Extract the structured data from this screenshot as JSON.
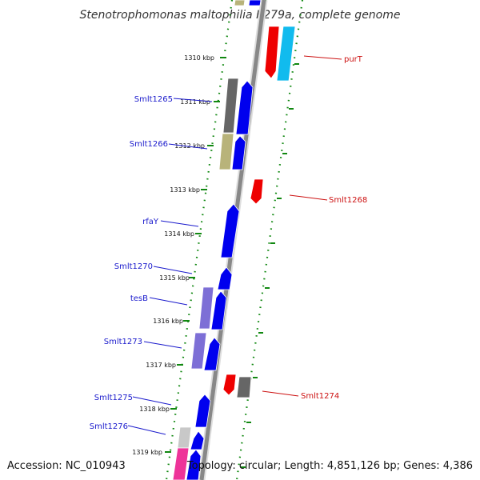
{
  "title": "Stenotrophomonas maltophilia K279a, complete genome",
  "footer": {
    "accession": "Accession: NC_010943",
    "topology": "Topology: circular; Length: 4,851,126 bp; Genes: 4,386"
  },
  "colors": {
    "backbone": "#888888",
    "tick": "#118811",
    "dots": "#118811",
    "forward_gene": "#0000ee",
    "reverse_gene": "#ee0000",
    "gray_gene": "#666666",
    "khaki_gene": "#b8b37a",
    "lavender_gene": "#7d6fd6",
    "cyan_gene": "#11bbee",
    "pink_gene": "#ee3399",
    "light_gray_gene": "#c8c8c8",
    "left_label": "#1a1acc",
    "right_label": "#cc1111"
  },
  "ticks": [
    {
      "label": "1310 kbp"
    },
    {
      "label": "1311 kbp"
    },
    {
      "label": "1312 kbp"
    },
    {
      "label": "1313 kbp"
    },
    {
      "label": "1314 kbp"
    },
    {
      "label": "1315 kbp"
    },
    {
      "label": "1316 kbp"
    },
    {
      "label": "1317 kbp"
    },
    {
      "label": "1318 kbp"
    },
    {
      "label": "1319 kbp"
    }
  ],
  "left_gene_labels": [
    {
      "name": "Smlt1265"
    },
    {
      "name": "Smlt1266"
    },
    {
      "name": "rfaY"
    },
    {
      "name": "Smlt1270"
    },
    {
      "name": "tesB"
    },
    {
      "name": "Smlt1273"
    },
    {
      "name": "Smlt1275"
    },
    {
      "name": "Smlt1276"
    }
  ],
  "right_gene_labels": [
    {
      "name": "purT"
    },
    {
      "name": "Smlt1268"
    },
    {
      "name": "Smlt1274"
    }
  ]
}
